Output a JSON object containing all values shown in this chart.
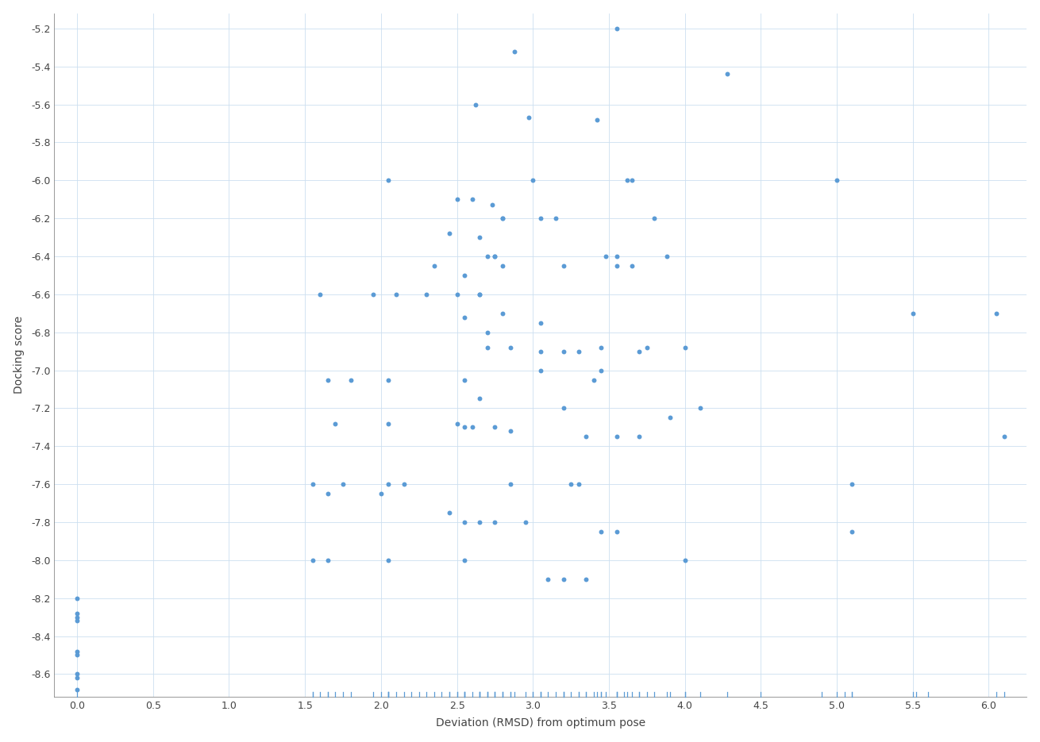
{
  "title": "",
  "xlabel": "Deviation (RMSD) from optimum pose",
  "ylabel": "Docking score",
  "xlim": [
    -0.15,
    6.25
  ],
  "ylim": [
    -8.72,
    -5.12
  ],
  "xticks": [
    0,
    0.5,
    1,
    1.5,
    2,
    2.5,
    3,
    3.5,
    4,
    4.5,
    5,
    5.5,
    6
  ],
  "yticks": [
    -5.2,
    -5.4,
    -5.6,
    -5.8,
    -6.0,
    -6.2,
    -6.4,
    -6.6,
    -6.8,
    -7.0,
    -7.2,
    -7.4,
    -7.6,
    -7.8,
    -8.0,
    -8.2,
    -8.4,
    -8.6
  ],
  "marker_color": "#5b9bd5",
  "marker_size": 18,
  "background_color": "#ffffff",
  "grid_color": "#ccdff0",
  "scatter_x": [
    3.55,
    2.88,
    4.28,
    2.62,
    2.97,
    3.42,
    2.05,
    3.0,
    3.62,
    3.65,
    5.0,
    2.5,
    2.6,
    2.73,
    2.8,
    3.05,
    3.15,
    3.8,
    2.45,
    2.65,
    2.75,
    2.8,
    3.48,
    3.55,
    3.88,
    2.35,
    2.55,
    2.7,
    2.75,
    2.8,
    3.2,
    3.55,
    3.65,
    1.6,
    1.95,
    2.1,
    2.3,
    2.5,
    2.65,
    2.65,
    2.8,
    5.5,
    6.05,
    2.55,
    2.7,
    2.85,
    3.05,
    3.45,
    3.75,
    2.7,
    3.05,
    3.2,
    3.3,
    3.7,
    4.0,
    1.65,
    1.8,
    2.05,
    2.55,
    3.05,
    3.4,
    3.45,
    6.1,
    2.65,
    3.2,
    3.55,
    3.9,
    4.1,
    1.7,
    2.05,
    2.5,
    2.55,
    2.6,
    2.75,
    2.85,
    3.35,
    3.7,
    1.55,
    1.65,
    1.75,
    2.05,
    2.15,
    2.85,
    3.25,
    3.3,
    5.1,
    2.0,
    2.45,
    2.55,
    2.65,
    2.75,
    2.95,
    3.45,
    3.55,
    5.1,
    1.55,
    1.65,
    2.05,
    2.55,
    3.1,
    3.2,
    3.35,
    4.0,
    0.0,
    0.0,
    0.0,
    0.0,
    0.0,
    0.0,
    0.0,
    0.0,
    0.0
  ],
  "scatter_y": [
    -5.2,
    -5.32,
    -5.44,
    -5.6,
    -5.67,
    -5.68,
    -6.0,
    -6.0,
    -6.0,
    -6.0,
    -6.0,
    -6.1,
    -6.1,
    -6.13,
    -6.2,
    -6.2,
    -6.2,
    -6.2,
    -6.28,
    -6.3,
    -6.4,
    -6.2,
    -6.4,
    -6.4,
    -6.4,
    -6.45,
    -6.5,
    -6.4,
    -6.4,
    -6.45,
    -6.45,
    -6.45,
    -6.45,
    -6.6,
    -6.6,
    -6.6,
    -6.6,
    -6.6,
    -6.6,
    -6.6,
    -6.7,
    -6.7,
    -6.7,
    -6.72,
    -6.8,
    -6.88,
    -6.75,
    -6.88,
    -6.88,
    -6.88,
    -6.9,
    -6.9,
    -6.9,
    -6.9,
    -6.88,
    -7.05,
    -7.05,
    -7.05,
    -7.05,
    -7.0,
    -7.05,
    -7.0,
    -7.35,
    -7.15,
    -7.2,
    -7.35,
    -7.25,
    -7.2,
    -7.28,
    -7.28,
    -7.28,
    -7.3,
    -7.3,
    -7.3,
    -7.32,
    -7.35,
    -7.35,
    -7.6,
    -7.65,
    -7.6,
    -7.6,
    -7.6,
    -7.6,
    -7.6,
    -7.6,
    -7.6,
    -7.65,
    -7.75,
    -7.8,
    -7.8,
    -7.8,
    -7.8,
    -7.85,
    -7.85,
    -7.85,
    -8.0,
    -8.0,
    -8.0,
    -8.0,
    -8.1,
    -8.1,
    -8.1,
    -8.0,
    -8.2,
    -8.28,
    -8.3,
    -8.32,
    -8.48,
    -8.5,
    -8.6,
    -8.62,
    -8.68
  ],
  "rug_x": [
    0.0,
    1.55,
    1.55,
    1.6,
    1.65,
    1.65,
    1.7,
    1.75,
    1.8,
    1.95,
    2.0,
    2.05,
    2.05,
    2.05,
    2.05,
    2.1,
    2.15,
    2.2,
    2.25,
    2.3,
    2.35,
    2.4,
    2.45,
    2.45,
    2.5,
    2.5,
    2.55,
    2.55,
    2.55,
    2.55,
    2.6,
    2.65,
    2.65,
    2.65,
    2.65,
    2.7,
    2.7,
    2.7,
    2.75,
    2.75,
    2.75,
    2.8,
    2.8,
    2.8,
    2.85,
    2.85,
    2.88,
    2.95,
    3.0,
    3.0,
    3.05,
    3.05,
    3.05,
    3.1,
    3.15,
    3.2,
    3.2,
    3.2,
    3.25,
    3.3,
    3.3,
    3.35,
    3.35,
    3.4,
    3.42,
    3.45,
    3.45,
    3.48,
    3.55,
    3.55,
    3.55,
    3.6,
    3.62,
    3.65,
    3.7,
    3.7,
    3.75,
    3.8,
    3.88,
    3.9,
    4.0,
    4.0,
    4.1,
    4.28,
    4.5,
    4.9,
    5.0,
    5.05,
    5.1,
    5.1,
    5.5,
    5.52,
    5.6,
    6.05,
    6.1
  ]
}
